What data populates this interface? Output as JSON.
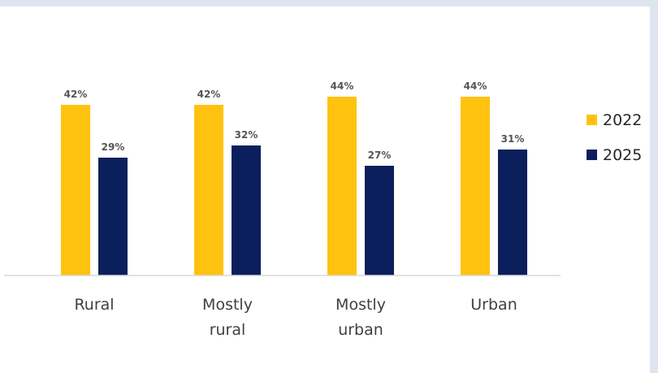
{
  "chart_data": {
    "type": "bar",
    "categories": [
      [
        "Rural"
      ],
      [
        "Mostly",
        "rural"
      ],
      [
        "Mostly",
        "urban"
      ],
      [
        "Urban"
      ]
    ],
    "series": [
      {
        "name": "2022",
        "color": "#ffc20e",
        "values": [
          42,
          42,
          44,
          44
        ],
        "labels": [
          "42%",
          "42%",
          "44%",
          "44%"
        ]
      },
      {
        "name": "2025",
        "color": "#0b1f5c",
        "values": [
          29,
          32,
          27,
          31
        ],
        "labels": [
          "29%",
          "32%",
          "27%",
          "31%"
        ]
      }
    ],
    "title": "",
    "xlabel": "",
    "ylabel": "",
    "ylim": [
      0,
      50
    ],
    "grid": false,
    "legend": "right"
  }
}
